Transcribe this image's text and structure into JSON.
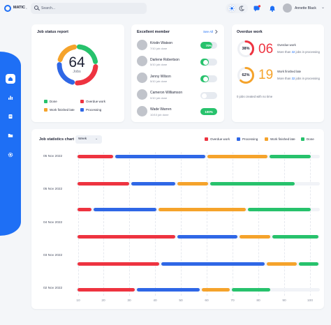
{
  "app": {
    "logo_text": "MATIC",
    "logo_extra": "•"
  },
  "search": {
    "placeholder": "Search..."
  },
  "header": {
    "user_name": "Annette Black",
    "chevron": "⌄"
  },
  "colors": {
    "done": "#27c26c",
    "overdue": "#ee3340",
    "late": "#f5a32b",
    "processing": "#2f67e6",
    "accent": "#1e6ff5"
  },
  "sidebar": {
    "items": [
      {
        "icon": "home-icon",
        "active": true
      },
      {
        "icon": "bar-chart-icon",
        "active": false
      },
      {
        "icon": "document-icon",
        "active": false
      },
      {
        "icon": "folder-icon",
        "active": false
      },
      {
        "icon": "gear-icon",
        "active": false
      }
    ]
  },
  "job_status": {
    "title": "Job status report",
    "total": "64",
    "total_label": "Jobs",
    "legend": [
      {
        "label": "Done",
        "color": "#27c26c"
      },
      {
        "label": "Overdue work",
        "color": "#ee3340"
      },
      {
        "label": "Work finished late",
        "color": "#f5a32b"
      },
      {
        "label": "Processing",
        "color": "#2f67e6"
      }
    ],
    "segments": [
      {
        "name": "Done",
        "fraction": 0.25,
        "color": "#27c26c"
      },
      {
        "name": "Overdue work",
        "fraction": 0.28,
        "color": "#ee3340"
      },
      {
        "name": "Processing",
        "fraction": 0.25,
        "color": "#2f67e6"
      },
      {
        "name": "Work finished late",
        "fraction": 0.22,
        "color": "#f5a32b"
      }
    ]
  },
  "members": {
    "title": "Excellent member",
    "see_all": "See All",
    "list": [
      {
        "name": "Kristin Watson",
        "sub": "7/10 job done",
        "pill_text": "70%",
        "progress": 0.7
      },
      {
        "name": "Darlene Robertson",
        "sub": "5/10 job done",
        "pill_text": "",
        "progress": 0.5
      },
      {
        "name": "Jenny Wilson",
        "sub": "5/10 job done",
        "pill_text": "",
        "progress": 0.5
      },
      {
        "name": "Cameron Williamson",
        "sub": "0/10 job done",
        "pill_text": "",
        "progress": 0.0
      },
      {
        "name": "Wade Warren",
        "sub": "10/10 job done",
        "pill_text": "100%",
        "progress": 1.0
      }
    ]
  },
  "overdue": {
    "title": "Overdue work",
    "overdue_pct": "38%",
    "overdue_fraction": 0.38,
    "overdue_count": "06",
    "overdue_label": "Overdue work",
    "overdue_sub_pre": "More than",
    "overdue_sub_num": "32",
    "overdue_sub_post": "jobs in processing",
    "late_pct": "62%",
    "late_fraction": 0.62,
    "late_count": "19",
    "late_label": "Work finished late",
    "late_sub_pre": "More than",
    "late_sub_num": "32",
    "late_sub_post": "jobs in processing",
    "footer": "0 jobs created with no time"
  },
  "chart_data": {
    "type": "bar",
    "title": "Job statistics chart",
    "period": "Week",
    "orientation": "horizontal stacked",
    "legend": [
      "Overdue work",
      "Processing",
      "Work finished late",
      "Done"
    ],
    "x_ticks": [
      "10",
      "20",
      "30",
      "40",
      "50",
      "60",
      "70",
      "80",
      "90",
      "100"
    ],
    "xlim": [
      10,
      100
    ],
    "date_labels": [
      "05 Nov 2022",
      "05 Nov 2022",
      "04 Nov 2022",
      "03 Nov 2022",
      "02 Nov 2022"
    ],
    "rows": [
      {
        "date": "05 Nov 2022",
        "segments": [
          [
            "Overdue work",
            10,
            24
          ],
          [
            "Processing",
            24,
            58
          ],
          [
            "Work finished late",
            58,
            81
          ],
          [
            "Done",
            81,
            97
          ]
        ]
      },
      {
        "date": "",
        "segments": [
          [
            "Overdue work",
            10,
            30
          ],
          [
            "Processing",
            30,
            47
          ],
          [
            "Work finished late",
            47,
            59
          ],
          [
            "Done",
            59,
            91
          ]
        ]
      },
      {
        "date": "05 Nov 2022",
        "segments": [
          [
            "Overdue work",
            10,
            16
          ],
          [
            "Processing",
            16,
            40
          ],
          [
            "Work finished late",
            40,
            73
          ],
          [
            "Done",
            73,
            97
          ]
        ]
      },
      {
        "date": "04 Nov 2022",
        "segments": [
          [
            "Overdue work",
            10,
            47
          ],
          [
            "Processing",
            47,
            70
          ],
          [
            "Work finished late",
            70,
            82
          ],
          [
            "Done",
            82,
            100
          ]
        ]
      },
      {
        "date": "03 Nov 2022",
        "segments": [
          [
            "Overdue work",
            10,
            41
          ],
          [
            "Processing",
            41,
            80
          ],
          [
            "Work finished late",
            80,
            92
          ],
          [
            "Done",
            92,
            100
          ]
        ]
      },
      {
        "date": "02 Nov 2022",
        "segments": [
          [
            "Overdue work",
            10,
            32
          ],
          [
            "Processing",
            32,
            56
          ],
          [
            "Work finished late",
            56,
            67
          ],
          [
            "Done",
            67,
            82
          ]
        ]
      }
    ]
  }
}
